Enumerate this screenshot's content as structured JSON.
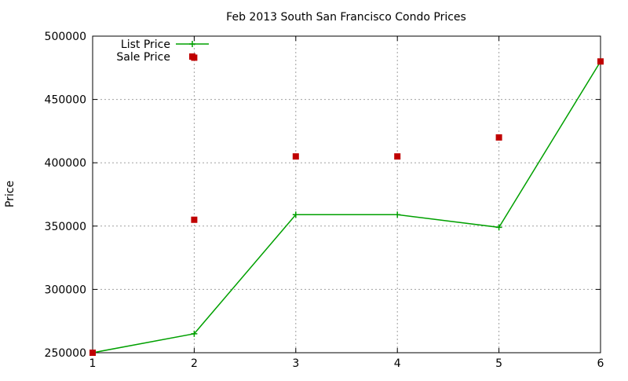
{
  "chart_data": {
    "type": "line",
    "title": "Feb 2013 South San Francisco Condo Prices",
    "xlabel": "",
    "ylabel": "Price",
    "xlim": [
      1,
      6
    ],
    "ylim": [
      250000,
      500000
    ],
    "x_ticks": [
      "1",
      "2",
      "3",
      "4",
      "5",
      "6"
    ],
    "y_ticks": [
      "250000",
      "300000",
      "350000",
      "400000",
      "450000",
      "500000"
    ],
    "grid": true,
    "legend_position": "top-left",
    "series": [
      {
        "name": "List Price",
        "style": "line-with-points",
        "color": "#00a000",
        "x": [
          1,
          2,
          3,
          4,
          5,
          6
        ],
        "values": [
          250000,
          265000,
          359000,
          359000,
          349000,
          480000
        ]
      },
      {
        "name": "Sale Price",
        "style": "points",
        "color": "#c00000",
        "x": [
          1,
          2,
          2,
          3,
          4,
          5,
          6
        ],
        "values": [
          250000,
          355000,
          483000,
          405000,
          405000,
          420000,
          480000
        ]
      }
    ]
  }
}
